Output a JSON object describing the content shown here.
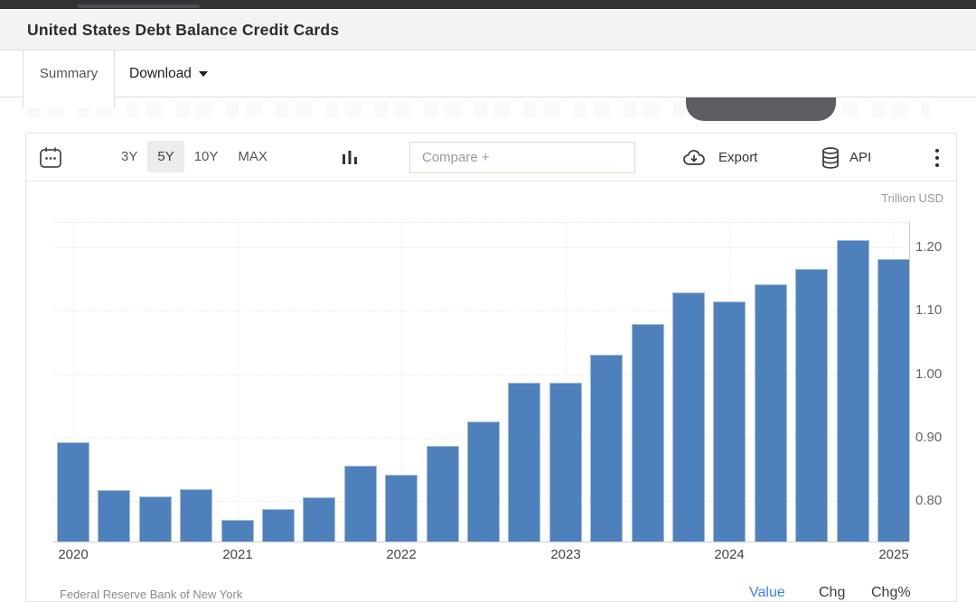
{
  "header": {
    "title": "United States Debt Balance Credit Cards"
  },
  "tabs": {
    "summary": {
      "label": "Summary"
    },
    "download": {
      "label": "Download"
    }
  },
  "toolbar": {
    "ranges": [
      {
        "label": "3Y",
        "active": false
      },
      {
        "label": "5Y",
        "active": true
      },
      {
        "label": "10Y",
        "active": false
      },
      {
        "label": "MAX",
        "active": false
      }
    ],
    "compare_placeholder": "Compare +",
    "export_label": "Export",
    "api_label": "API",
    "icons": [
      "calendar-icon",
      "column-chart-icon",
      "cloud-download-icon",
      "database-icon",
      "kebab-menu-icon"
    ]
  },
  "chart_data": {
    "type": "bar",
    "title": "United States Debt Balance Credit Cards",
    "unit_label": "Trillion USD",
    "x": [
      "2020 Q1",
      "2020 Q2",
      "2020 Q3",
      "2020 Q4",
      "2021 Q1",
      "2021 Q2",
      "2021 Q3",
      "2021 Q4",
      "2022 Q1",
      "2022 Q2",
      "2022 Q3",
      "2022 Q4",
      "2023 Q1",
      "2023 Q2",
      "2023 Q3",
      "2023 Q4",
      "2024 Q1",
      "2024 Q2",
      "2024 Q3",
      "2024 Q4",
      "2025 Q1"
    ],
    "values": [
      0.893,
      0.817,
      0.807,
      0.819,
      0.77,
      0.787,
      0.805,
      0.856,
      0.841,
      0.887,
      0.925,
      0.986,
      0.986,
      1.031,
      1.079,
      1.129,
      1.115,
      1.142,
      1.166,
      1.211,
      1.182
    ],
    "yticks": [
      0.8,
      0.9,
      1.0,
      1.1,
      1.2
    ],
    "xticks": [
      {
        "label": "2020",
        "bar_index": 0
      },
      {
        "label": "2021",
        "bar_index": 4
      },
      {
        "label": "2022",
        "bar_index": 8
      },
      {
        "label": "2023",
        "bar_index": 12
      },
      {
        "label": "2024",
        "bar_index": 16
      },
      {
        "label": "2025",
        "bar_index": 20
      }
    ],
    "ylim": [
      0.736,
      1.237
    ],
    "grid": true,
    "legend": "none",
    "bar_color": "#4e81bc"
  },
  "footer": {
    "source": "Federal Reserve Bank of New York",
    "links": [
      {
        "label": "Value",
        "color": "#3e82f7"
      },
      {
        "label": "Chg",
        "color": "#3a3a3a"
      },
      {
        "label": "Chg%",
        "color": "#3a3a3a"
      }
    ]
  }
}
